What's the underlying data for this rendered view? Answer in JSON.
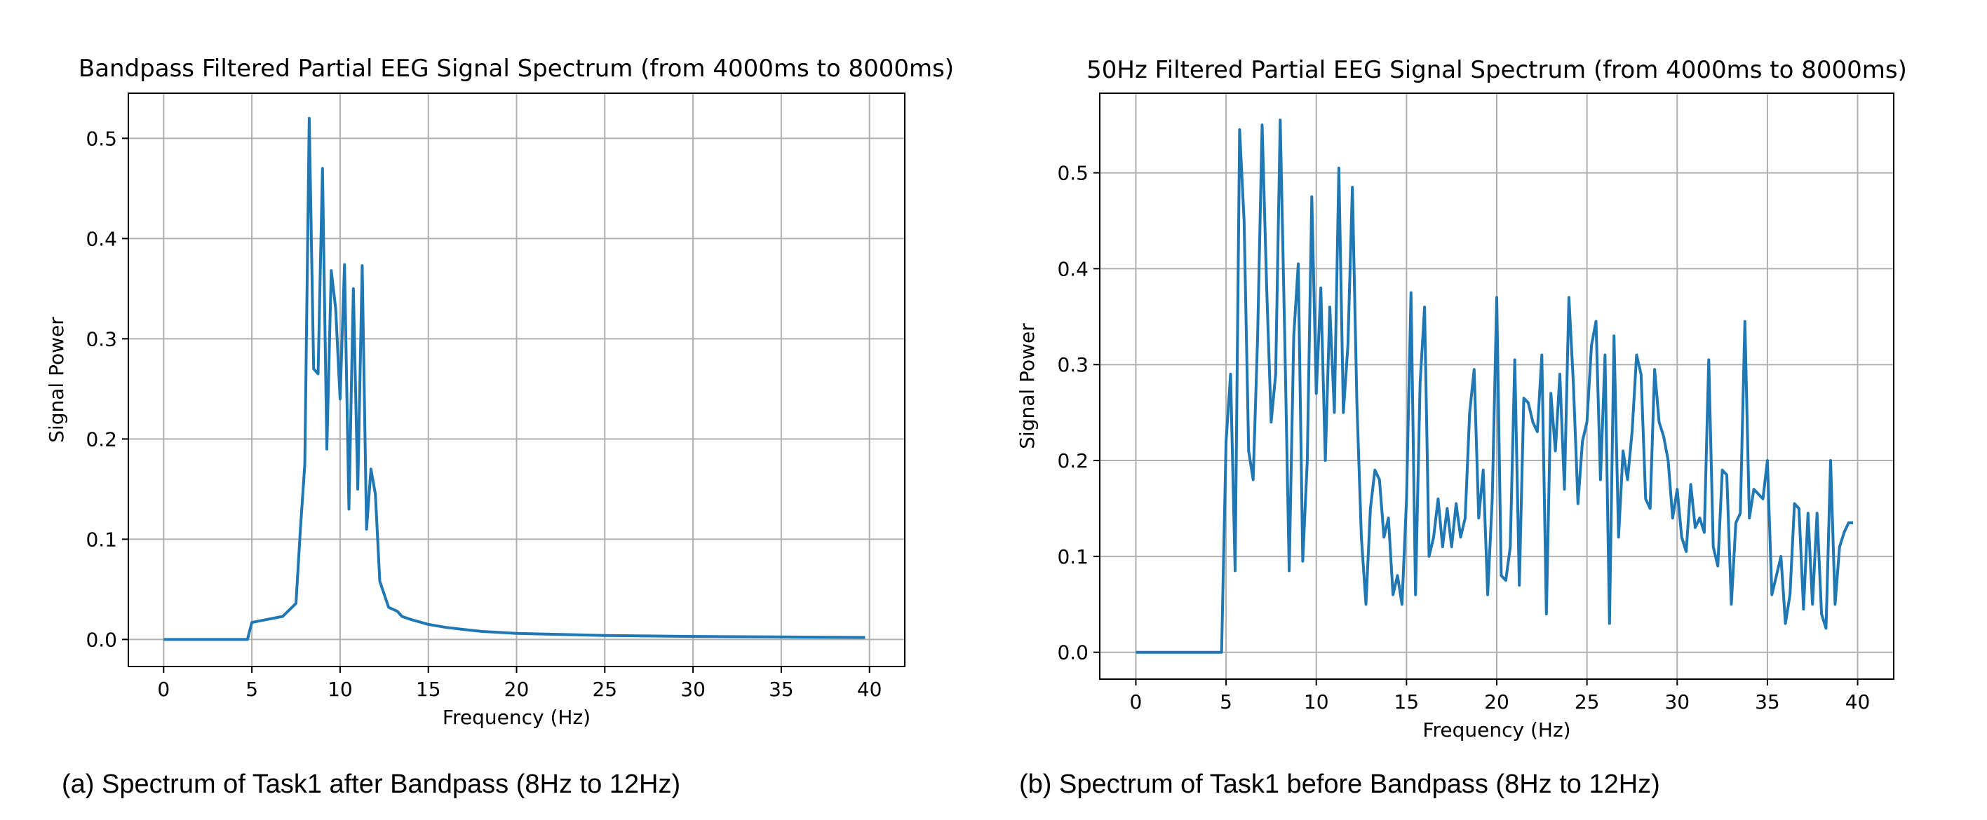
{
  "captions": [
    "(a)  Spectrum  of Task1 after Bandpass (8Hz to 12Hz)",
    "(b)  Spectrum  of Task1 before Bandpass (8Hz to 12Hz)"
  ],
  "line_color": "#1f77b4",
  "chart_data": [
    {
      "type": "line",
      "title": "Bandpass Filtered Partial EEG Signal Spectrum (from 4000ms to 8000ms)",
      "xlabel": "Frequency (Hz)",
      "ylabel": "Signal Power",
      "xlim": [
        -2,
        42
      ],
      "ylim": [
        -0.027,
        0.545
      ],
      "xticks": [
        0,
        5,
        10,
        15,
        20,
        25,
        30,
        35,
        40
      ],
      "yticks": [
        0.0,
        0.1,
        0.2,
        0.3,
        0.4,
        0.5
      ],
      "grid": true,
      "x": [
        0,
        4.75,
        5.0,
        6.75,
        7.5,
        7.75,
        8.0,
        8.25,
        8.5,
        8.75,
        9.0,
        9.25,
        9.5,
        9.75,
        10.0,
        10.25,
        10.5,
        10.75,
        11.0,
        11.25,
        11.5,
        11.75,
        12.0,
        12.25,
        12.75,
        13.25,
        13.5,
        14.0,
        15.0,
        16.0,
        17.0,
        18.0,
        20.0,
        22.5,
        25.0,
        30.0,
        35.0,
        39.75
      ],
      "series": [
        {
          "name": "",
          "values": [
            0,
            0,
            0.017,
            0.023,
            0.036,
            0.11,
            0.175,
            0.52,
            0.27,
            0.265,
            0.47,
            0.19,
            0.368,
            0.33,
            0.24,
            0.374,
            0.13,
            0.35,
            0.15,
            0.373,
            0.11,
            0.17,
            0.145,
            0.058,
            0.032,
            0.028,
            0.023,
            0.02,
            0.015,
            0.012,
            0.01,
            0.008,
            0.006,
            0.005,
            0.004,
            0.003,
            0.0025,
            0.002
          ]
        }
      ]
    },
    {
      "type": "line",
      "title": "50Hz Filtered Partial EEG Signal Spectrum (from 4000ms to 8000ms)",
      "xlabel": "Frequency (Hz)",
      "ylabel": "Signal Power",
      "xlim": [
        -2,
        42
      ],
      "ylim": [
        -0.028,
        0.583
      ],
      "xticks": [
        0,
        5,
        10,
        15,
        20,
        25,
        30,
        35,
        40
      ],
      "yticks": [
        0.0,
        0.1,
        0.2,
        0.3,
        0.4,
        0.5
      ],
      "grid": true,
      "x": [
        0,
        4.75,
        5.0,
        5.25,
        5.5,
        5.75,
        6.0,
        6.25,
        6.5,
        6.75,
        7.0,
        7.25,
        7.5,
        7.75,
        8.0,
        8.25,
        8.5,
        8.75,
        9.0,
        9.25,
        9.5,
        9.75,
        10.0,
        10.25,
        10.5,
        10.75,
        11.0,
        11.25,
        11.5,
        11.75,
        12.0,
        12.25,
        12.5,
        12.75,
        13.0,
        13.25,
        13.5,
        13.75,
        14.0,
        14.25,
        14.5,
        14.75,
        15.0,
        15.25,
        15.5,
        15.75,
        16.0,
        16.25,
        16.5,
        16.75,
        17.0,
        17.25,
        17.5,
        17.75,
        18.0,
        18.25,
        18.5,
        18.75,
        19.0,
        19.25,
        19.5,
        19.75,
        20.0,
        20.25,
        20.5,
        20.75,
        21.0,
        21.25,
        21.5,
        21.75,
        22.0,
        22.25,
        22.5,
        22.75,
        23.0,
        23.25,
        23.5,
        23.75,
        24.0,
        24.25,
        24.5,
        24.75,
        25.0,
        25.25,
        25.5,
        25.75,
        26.0,
        26.25,
        26.5,
        26.75,
        27.0,
        27.25,
        27.5,
        27.75,
        28.0,
        28.25,
        28.5,
        28.75,
        29.0,
        29.25,
        29.5,
        29.75,
        30.0,
        30.25,
        30.5,
        30.75,
        31.0,
        31.25,
        31.5,
        31.75,
        32.0,
        32.25,
        32.5,
        32.75,
        33.0,
        33.25,
        33.5,
        33.75,
        34.0,
        34.25,
        34.5,
        34.75,
        35.0,
        35.25,
        35.5,
        35.75,
        36.0,
        36.25,
        36.5,
        36.75,
        37.0,
        37.25,
        37.5,
        37.75,
        38.0,
        38.25,
        38.5,
        38.75,
        39.0,
        39.25,
        39.5,
        39.75
      ],
      "series": [
        {
          "name": "",
          "values": [
            0,
            0,
            0.22,
            0.29,
            0.085,
            0.545,
            0.45,
            0.21,
            0.18,
            0.33,
            0.55,
            0.38,
            0.24,
            0.29,
            0.555,
            0.33,
            0.085,
            0.33,
            0.405,
            0.095,
            0.2,
            0.475,
            0.27,
            0.38,
            0.2,
            0.36,
            0.25,
            0.505,
            0.25,
            0.32,
            0.485,
            0.26,
            0.12,
            0.05,
            0.15,
            0.19,
            0.18,
            0.12,
            0.14,
            0.06,
            0.08,
            0.05,
            0.16,
            0.375,
            0.06,
            0.28,
            0.36,
            0.1,
            0.12,
            0.16,
            0.11,
            0.15,
            0.11,
            0.155,
            0.12,
            0.14,
            0.25,
            0.295,
            0.14,
            0.19,
            0.06,
            0.16,
            0.37,
            0.08,
            0.075,
            0.11,
            0.305,
            0.07,
            0.265,
            0.26,
            0.24,
            0.23,
            0.31,
            0.04,
            0.27,
            0.21,
            0.29,
            0.17,
            0.37,
            0.28,
            0.155,
            0.22,
            0.24,
            0.32,
            0.345,
            0.18,
            0.31,
            0.03,
            0.33,
            0.12,
            0.21,
            0.18,
            0.23,
            0.31,
            0.29,
            0.16,
            0.15,
            0.295,
            0.24,
            0.225,
            0.2,
            0.14,
            0.17,
            0.12,
            0.105,
            0.175,
            0.13,
            0.14,
            0.125,
            0.305,
            0.11,
            0.09,
            0.19,
            0.185,
            0.05,
            0.135,
            0.145,
            0.345,
            0.14,
            0.17,
            0.165,
            0.16,
            0.2,
            0.06,
            0.08,
            0.1,
            0.03,
            0.06,
            0.155,
            0.15,
            0.045,
            0.145,
            0.05,
            0.145,
            0.04,
            0.025,
            0.2,
            0.05,
            0.11,
            0.125,
            0.135,
            0.135
          ]
        }
      ]
    }
  ]
}
